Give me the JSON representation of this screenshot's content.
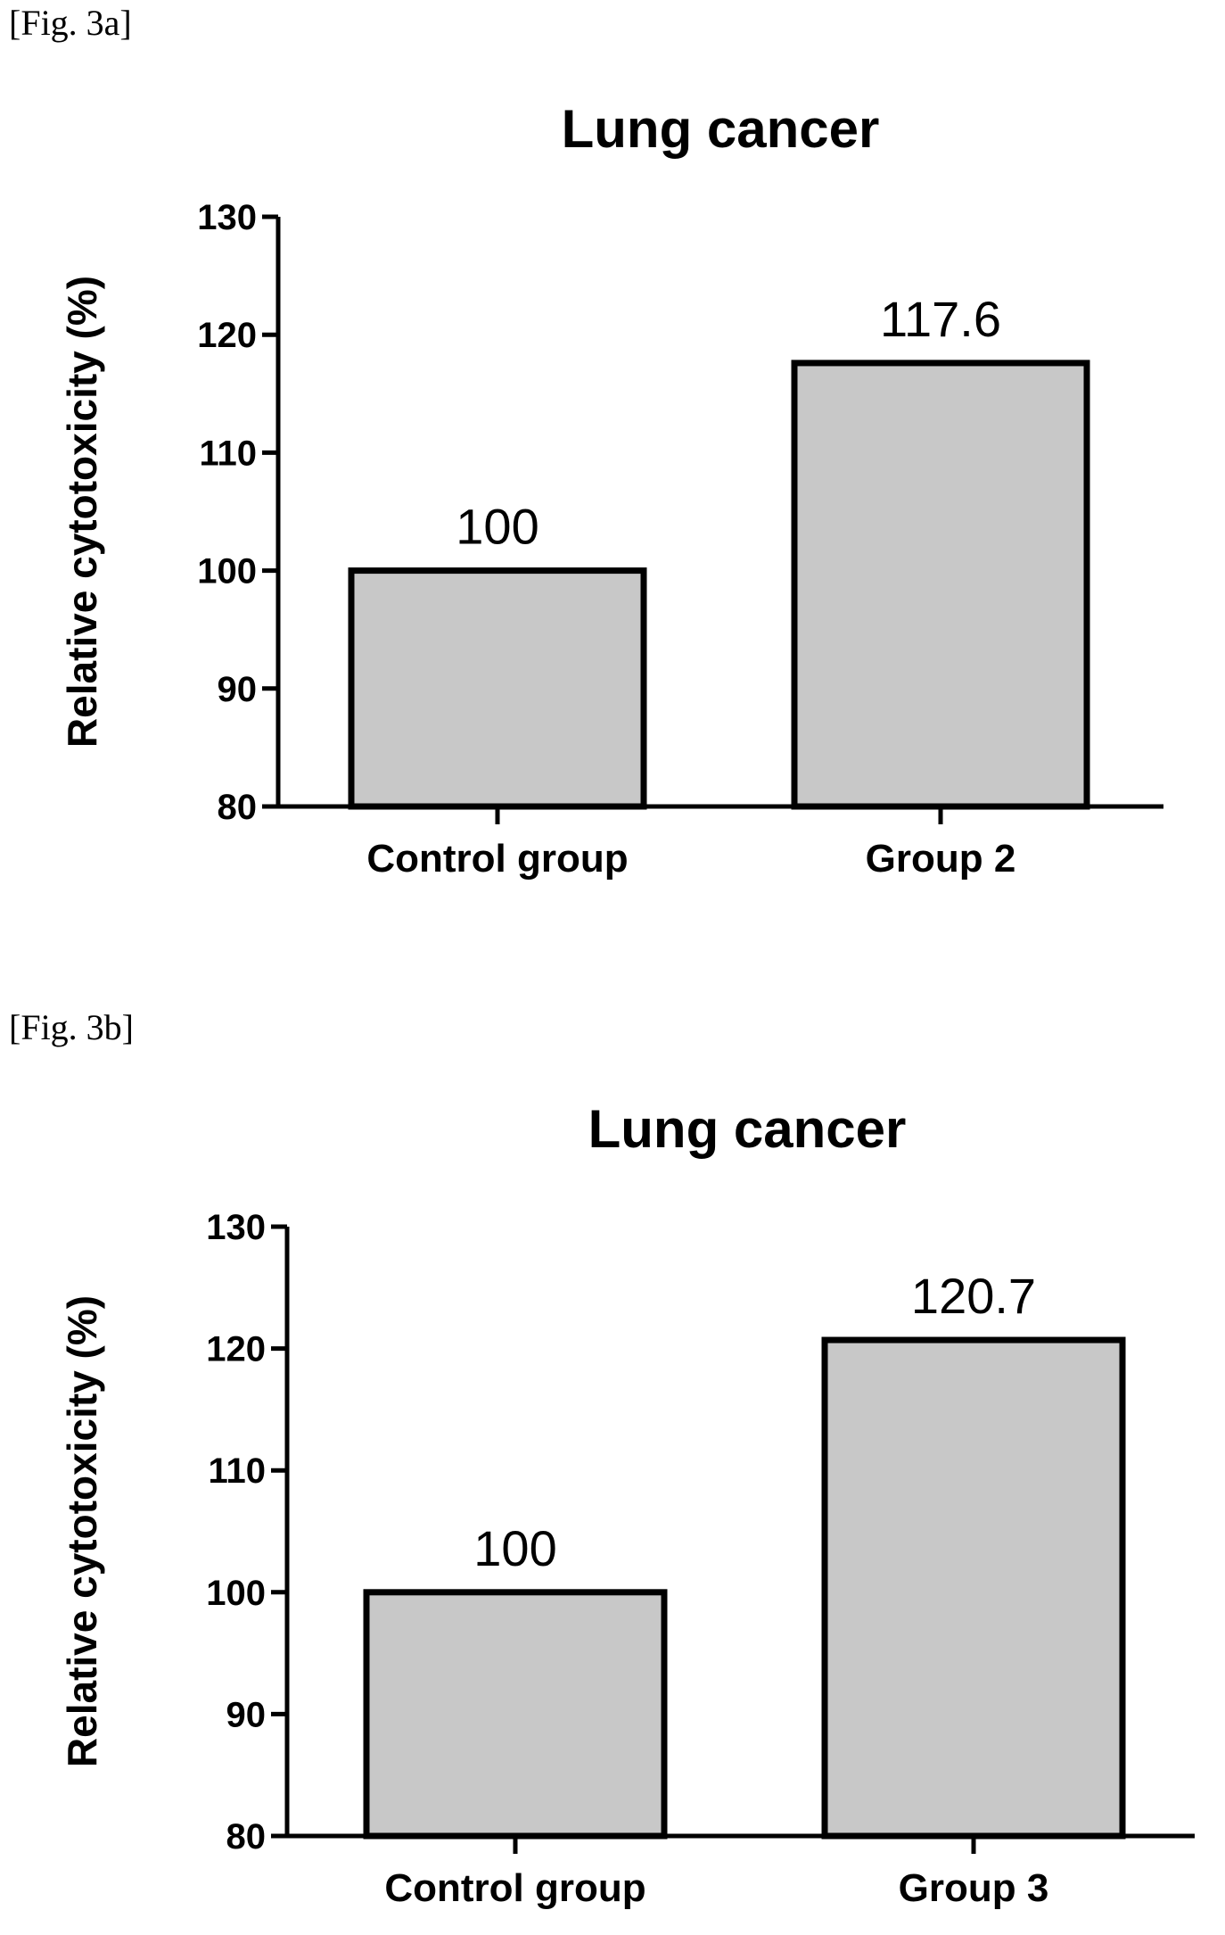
{
  "figures": [
    {
      "label": "[Fig. 3a]"
    },
    {
      "label": "[Fig. 3b]"
    }
  ],
  "chart_data": [
    {
      "type": "bar",
      "title": "Lung cancer",
      "xlabel": "",
      "ylabel": "Relative cytotoxicity (%)",
      "categories": [
        "Control group",
        "Group 2"
      ],
      "values": [
        100,
        117.6
      ],
      "data_labels": [
        "100",
        "117.6"
      ],
      "ylim": [
        80,
        130
      ],
      "yticks": [
        80,
        90,
        100,
        110,
        120,
        130
      ],
      "grid": false,
      "bar_fill": "#c8c8c8",
      "bar_stroke": "#000000"
    },
    {
      "type": "bar",
      "title": "Lung cancer",
      "xlabel": "",
      "ylabel": "Relative cytotoxicity (%)",
      "categories": [
        "Control group",
        "Group 3"
      ],
      "values": [
        100,
        120.7
      ],
      "data_labels": [
        "100",
        "120.7"
      ],
      "ylim": [
        80,
        130
      ],
      "yticks": [
        80,
        90,
        100,
        110,
        120,
        130
      ],
      "grid": false,
      "bar_fill": "#c8c8c8",
      "bar_stroke": "#000000"
    }
  ]
}
